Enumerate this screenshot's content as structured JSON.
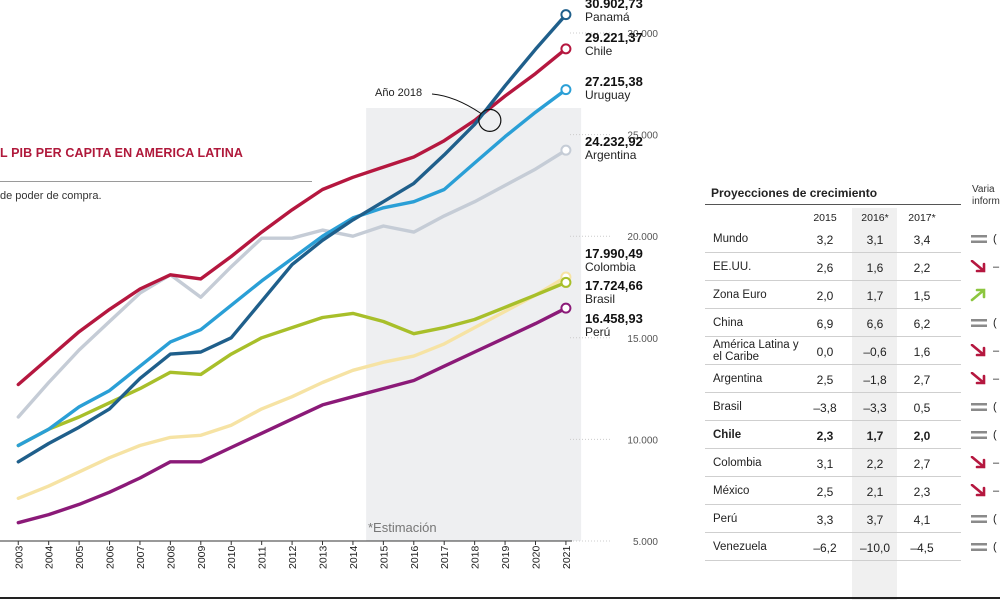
{
  "chart_title": "L PIB PER CAPITA EN AMERICA LATINA",
  "chart_subtitle": "de poder de compra.",
  "estimation_note": "*Estimación",
  "year_callout": "Año 2018",
  "colors": {
    "Panamá": "#1f5f8b",
    "Chile": "#b5173f",
    "Uruguay": "#2a9fd6",
    "Argentina": "#c5ccd6",
    "Colombia": "#f6e3a4",
    "Brasil": "#a8bf2a",
    "Perú": "#8b1a78"
  },
  "chart_data": {
    "type": "line",
    "title": "L PIB PER CAPITA EN AMERICA LATINA",
    "subtitle": "de poder de compra.",
    "x": [
      2003,
      2004,
      2005,
      2006,
      2007,
      2008,
      2009,
      2010,
      2011,
      2012,
      2013,
      2014,
      2015,
      2016,
      2017,
      2018,
      2019,
      2020,
      2021
    ],
    "x_range": [
      2002.4,
      2021.2
    ],
    "ylim": [
      5000,
      32000
    ],
    "yticks": [
      5000,
      10000,
      15000,
      20000,
      25000,
      30000
    ],
    "ytick_labels": [
      "5.000",
      "10.000",
      "15.000",
      "20.000",
      "25.000",
      "30.000"
    ],
    "estimate_region": [
      2014.5,
      2021.5
    ],
    "grid": false,
    "series": [
      {
        "name": "Panamá",
        "end_label": "30.902,73",
        "values": [
          8900,
          9800,
          10600,
          11500,
          13000,
          14200,
          14300,
          15000,
          16800,
          18600,
          19800,
          20800,
          21700,
          22600,
          24000,
          25500,
          27400,
          29200,
          30903
        ]
      },
      {
        "name": "Chile",
        "end_label": "29.221,37",
        "values": [
          12700,
          14000,
          15300,
          16400,
          17400,
          18100,
          17900,
          19000,
          20200,
          21300,
          22300,
          22900,
          23400,
          23900,
          24700,
          25700,
          26900,
          28000,
          29221
        ]
      },
      {
        "name": "Uruguay",
        "end_label": "27.215,38",
        "values": [
          9700,
          10500,
          11600,
          12400,
          13600,
          14800,
          15400,
          16600,
          17800,
          18900,
          20000,
          20900,
          21400,
          21700,
          22300,
          23600,
          24900,
          26100,
          27215
        ]
      },
      {
        "name": "Argentina",
        "end_label": "24.232,92",
        "values": [
          11100,
          12800,
          14400,
          15800,
          17200,
          18100,
          17000,
          18500,
          19900,
          19900,
          20300,
          20000,
          20500,
          20200,
          21000,
          21700,
          22500,
          23300,
          24233
        ]
      },
      {
        "name": "Colombia",
        "end_label": "17.990,49",
        "values": [
          7100,
          7700,
          8400,
          9100,
          9700,
          10100,
          10200,
          10700,
          11500,
          12100,
          12800,
          13400,
          13800,
          14100,
          14700,
          15500,
          16300,
          17100,
          17990
        ]
      },
      {
        "name": "Brasil",
        "end_label": "17.724,66",
        "values": [
          9700,
          10500,
          11100,
          11800,
          12500,
          13300,
          13200,
          14200,
          15000,
          15500,
          16000,
          16200,
          15800,
          15200,
          15500,
          15900,
          16500,
          17100,
          17725
        ]
      },
      {
        "name": "Perú",
        "end_label": "16.458,93",
        "values": [
          5900,
          6300,
          6800,
          7400,
          8100,
          8900,
          8900,
          9600,
          10300,
          11000,
          11700,
          12100,
          12500,
          12900,
          13600,
          14300,
          15000,
          15700,
          16459
        ]
      }
    ]
  },
  "table": {
    "title": "Proyecciones de crecimiento",
    "variation_header": [
      "Varia",
      "inform"
    ],
    "columns": [
      "2015",
      "2016*",
      "2017*"
    ],
    "rows": [
      {
        "name": "Mundo",
        "v2015": "3,2",
        "v2016": "3,1",
        "v2017": "3,4",
        "trend": "equal",
        "tail": "("
      },
      {
        "name": "EE.UU.",
        "v2015": "2,6",
        "v2016": "1,6",
        "v2017": "2,2",
        "trend": "down",
        "tail": "–"
      },
      {
        "name": "Zona Euro",
        "v2015": "2,0",
        "v2016": "1,7",
        "v2017": "1,5",
        "trend": "up",
        "tail": ""
      },
      {
        "name": "China",
        "v2015": "6,9",
        "v2016": "6,6",
        "v2017": "6,2",
        "trend": "equal",
        "tail": "("
      },
      {
        "name": "América Latina y el Caribe",
        "v2015": "0,0",
        "v2016": "–0,6",
        "v2017": "1,6",
        "trend": "down",
        "tail": "–"
      },
      {
        "name": "Argentina",
        "v2015": "2,5",
        "v2016": "–1,8",
        "v2017": "2,7",
        "trend": "down",
        "tail": "–"
      },
      {
        "name": "Brasil",
        "v2015": "–3,8",
        "v2016": "–3,3",
        "v2017": "0,5",
        "trend": "equal",
        "tail": "("
      },
      {
        "name": "Chile",
        "v2015": "2,3",
        "v2016": "1,7",
        "v2017": "2,0",
        "trend": "equal",
        "tail": "(",
        "bold": true
      },
      {
        "name": "Colombia",
        "v2015": "3,1",
        "v2016": "2,2",
        "v2017": "2,7",
        "trend": "down",
        "tail": "–"
      },
      {
        "name": "México",
        "v2015": "2,5",
        "v2016": "2,1",
        "v2017": "2,3",
        "trend": "down",
        "tail": "–"
      },
      {
        "name": "Perú",
        "v2015": "3,3",
        "v2016": "3,7",
        "v2017": "4,1",
        "trend": "equal",
        "tail": "("
      },
      {
        "name": "Venezuela",
        "v2015": "–6,2",
        "v2016": "–10,0",
        "v2017": "–4,5",
        "trend": "equal",
        "tail": "("
      }
    ]
  }
}
